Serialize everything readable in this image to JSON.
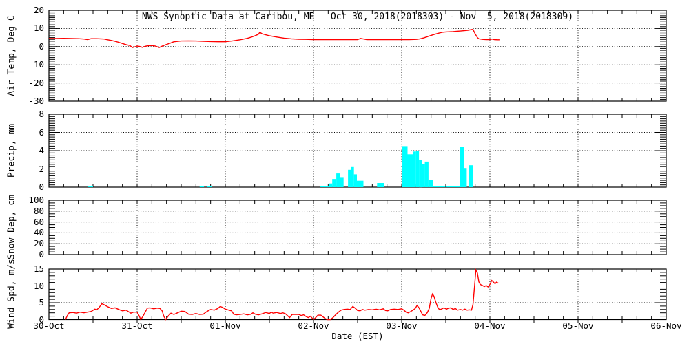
{
  "title": "NWS Synoptic Data at Caribou, ME   Oct 30, 2018(2018303) - Nov  5, 2018(2018309)",
  "xlabel": "Date (EST)",
  "colors": {
    "line": "#ff0000",
    "bar": "#00ffff",
    "axis": "#000000",
    "background": "#ffffff"
  },
  "x_axis": {
    "hours_total": 168,
    "day_labels": [
      "30-Oct",
      "31-Oct",
      "01-Nov",
      "02-Nov",
      "03-Nov",
      "04-Nov",
      "05-Nov",
      "06-Nov"
    ],
    "minor_tick_hours": 4,
    "grid_day_hours": [
      24,
      48,
      72,
      96,
      120,
      144
    ]
  },
  "chart_data": [
    {
      "type": "line",
      "name": "air-temperature",
      "ylabel": "Air Temp, Deg C",
      "ylim": [
        -30,
        20
      ],
      "yticks": [
        -30,
        -20,
        -10,
        0,
        10,
        20
      ],
      "ygrid": [
        -20,
        -10,
        0,
        10
      ],
      "y_minor_step": 1,
      "points": [
        [
          0,
          4.5
        ],
        [
          2,
          4.5
        ],
        [
          4,
          4.6
        ],
        [
          6,
          4.5
        ],
        [
          8,
          4.4
        ],
        [
          9.5,
          4.2
        ],
        [
          10.5,
          3.9
        ],
        [
          11.5,
          4.4
        ],
        [
          13,
          4.4
        ],
        [
          15,
          4.2
        ],
        [
          16,
          3.8
        ],
        [
          17,
          3.4
        ],
        [
          18,
          2.9
        ],
        [
          19,
          2.4
        ],
        [
          20,
          1.7
        ],
        [
          21,
          1.1
        ],
        [
          22,
          0.6
        ],
        [
          22.7,
          -0.5
        ],
        [
          23.4,
          -0.1
        ],
        [
          24,
          0.3
        ],
        [
          24.7,
          0.1
        ],
        [
          25.4,
          -0.4
        ],
        [
          26.2,
          0.2
        ],
        [
          27,
          0.5
        ],
        [
          28,
          0.6
        ],
        [
          29,
          0.3
        ],
        [
          30,
          -0.5
        ],
        [
          31,
          0.4
        ],
        [
          32,
          1.2
        ],
        [
          33,
          1.9
        ],
        [
          34,
          2.7
        ],
        [
          36,
          3.1
        ],
        [
          38,
          3.2
        ],
        [
          40,
          3.1
        ],
        [
          42,
          2.9
        ],
        [
          44,
          2.8
        ],
        [
          46,
          2.7
        ],
        [
          48,
          2.7
        ],
        [
          49,
          2.9
        ],
        [
          50,
          3.2
        ],
        [
          52,
          3.8
        ],
        [
          54,
          4.6
        ],
        [
          55,
          5.2
        ],
        [
          56,
          5.9
        ],
        [
          57,
          6.8
        ],
        [
          57.4,
          7.9
        ],
        [
          58,
          7.1
        ],
        [
          59,
          6.5
        ],
        [
          60,
          6.0
        ],
        [
          62,
          5.3
        ],
        [
          64,
          4.7
        ],
        [
          66,
          4.3
        ],
        [
          68,
          4.1
        ],
        [
          70,
          4.0
        ],
        [
          72,
          3.9
        ],
        [
          75,
          3.9
        ],
        [
          78,
          3.9
        ],
        [
          81,
          3.9
        ],
        [
          84,
          3.9
        ],
        [
          84.8,
          4.5
        ],
        [
          85.7,
          4.2
        ],
        [
          86.5,
          3.9
        ],
        [
          88,
          3.9
        ],
        [
          90,
          3.9
        ],
        [
          92,
          3.9
        ],
        [
          94,
          3.9
        ],
        [
          96,
          3.9
        ],
        [
          98,
          3.9
        ],
        [
          100,
          4.0
        ],
        [
          101,
          4.3
        ],
        [
          102,
          4.8
        ],
        [
          103,
          5.5
        ],
        [
          104,
          6.2
        ],
        [
          105,
          6.8
        ],
        [
          106,
          7.4
        ],
        [
          107,
          7.9
        ],
        [
          108,
          8.1
        ],
        [
          109,
          8.2
        ],
        [
          110,
          8.3
        ],
        [
          111,
          8.5
        ],
        [
          112,
          8.6
        ],
        [
          113,
          8.8
        ],
        [
          114,
          9.0
        ],
        [
          115,
          9.4
        ],
        [
          115.4,
          9.5
        ],
        [
          116,
          7.0
        ],
        [
          116.6,
          5.0
        ],
        [
          117,
          4.3
        ],
        [
          118,
          4.0
        ],
        [
          119,
          3.9
        ],
        [
          120,
          3.9
        ],
        [
          120.6,
          4.2
        ],
        [
          121.2,
          3.9
        ],
        [
          122,
          3.8
        ],
        [
          122.6,
          3.8
        ]
      ]
    },
    {
      "type": "bar",
      "name": "precipitation",
      "ylabel": "Precip, mm",
      "ylim": [
        0,
        8
      ],
      "yticks": [
        0,
        2,
        4,
        6,
        8
      ],
      "ygrid": [
        2,
        4,
        6
      ],
      "y_minor_step": 0.25,
      "bars": [
        {
          "t": 10.7,
          "w": 1.3,
          "v": 0.15
        },
        {
          "t": 41.0,
          "w": 1.2,
          "v": 0.15
        },
        {
          "t": 43.1,
          "w": 1.3,
          "v": 0.15
        },
        {
          "t": 73.9,
          "w": 1.1,
          "v": 0.1
        },
        {
          "t": 75.0,
          "w": 1.1,
          "v": 0.12
        },
        {
          "t": 76.1,
          "w": 1.0,
          "v": 0.4
        },
        {
          "t": 77.1,
          "w": 1.1,
          "v": 0.9
        },
        {
          "t": 78.2,
          "w": 1.1,
          "v": 1.5
        },
        {
          "t": 79.3,
          "w": 0.9,
          "v": 1.1
        },
        {
          "t": 81.4,
          "w": 0.8,
          "v": 1.9
        },
        {
          "t": 82.2,
          "w": 0.8,
          "v": 2.2
        },
        {
          "t": 83.0,
          "w": 0.8,
          "v": 1.4
        },
        {
          "t": 83.8,
          "w": 1.8,
          "v": 0.7
        },
        {
          "t": 89.3,
          "w": 2.0,
          "v": 0.45
        },
        {
          "t": 96.0,
          "w": 1.6,
          "v": 4.5
        },
        {
          "t": 97.6,
          "w": 1.5,
          "v": 3.6
        },
        {
          "t": 99.1,
          "w": 0.8,
          "v": 3.9
        },
        {
          "t": 99.9,
          "w": 0.8,
          "v": 4.0
        },
        {
          "t": 100.7,
          "w": 0.8,
          "v": 3.0
        },
        {
          "t": 101.5,
          "w": 0.8,
          "v": 2.5
        },
        {
          "t": 102.3,
          "w": 1.0,
          "v": 2.8
        },
        {
          "t": 103.3,
          "w": 1.3,
          "v": 0.8
        },
        {
          "t": 104.6,
          "w": 3.3,
          "v": 0.15
        },
        {
          "t": 108.2,
          "w": 3.6,
          "v": 0.15
        },
        {
          "t": 111.8,
          "w": 1.1,
          "v": 4.4
        },
        {
          "t": 112.9,
          "w": 0.8,
          "v": 2.1
        },
        {
          "t": 114.2,
          "w": 1.3,
          "v": 2.4
        }
      ]
    },
    {
      "type": "line",
      "name": "snow-depth",
      "ylabel": "Snow Dep, cm",
      "ylim": [
        0,
        100
      ],
      "yticks": [
        0,
        20,
        40,
        60,
        80,
        100
      ],
      "ygrid": [
        20,
        40,
        60,
        80
      ],
      "y_minor_step": 5,
      "points": []
    },
    {
      "type": "line",
      "name": "wind-speed",
      "ylabel": "Wind Spd, m/s",
      "ylim": [
        0,
        15
      ],
      "yticks": [
        0,
        5,
        10,
        15
      ],
      "ygrid": [
        5,
        10
      ],
      "y_minor_step": 1,
      "points": [
        [
          4.5,
          0
        ],
        [
          5,
          1.2
        ],
        [
          5.5,
          2.0
        ],
        [
          6.5,
          2.1
        ],
        [
          7.5,
          1.9
        ],
        [
          8.5,
          2.2
        ],
        [
          9.5,
          2.0
        ],
        [
          10.5,
          2.2
        ],
        [
          11.5,
          2.4
        ],
        [
          12.5,
          3.1
        ],
        [
          13,
          2.9
        ],
        [
          13.6,
          3.5
        ],
        [
          14.4,
          4.7
        ],
        [
          15,
          4.4
        ],
        [
          16,
          3.8
        ],
        [
          17,
          3.3
        ],
        [
          18,
          3.5
        ],
        [
          19,
          3.0
        ],
        [
          20,
          2.6
        ],
        [
          21,
          2.8
        ],
        [
          21.7,
          2.3
        ],
        [
          22.3,
          1.9
        ],
        [
          23,
          2.2
        ],
        [
          24,
          2.2
        ],
        [
          24.6,
          1.0
        ],
        [
          25,
          0.0
        ],
        [
          25.6,
          1.0
        ],
        [
          26.2,
          2.2
        ],
        [
          26.8,
          3.4
        ],
        [
          27.5,
          3.5
        ],
        [
          28.5,
          3.2
        ],
        [
          29.5,
          3.4
        ],
        [
          30.2,
          3.3
        ],
        [
          30.8,
          2.6
        ],
        [
          31.3,
          0.9
        ],
        [
          31.8,
          0.0
        ],
        [
          32.5,
          1.1
        ],
        [
          33.2,
          1.9
        ],
        [
          34,
          1.5
        ],
        [
          35,
          2.0
        ],
        [
          36,
          2.5
        ],
        [
          37,
          2.4
        ],
        [
          38,
          1.6
        ],
        [
          39,
          1.5
        ],
        [
          40,
          1.8
        ],
        [
          41,
          1.5
        ],
        [
          42,
          1.6
        ],
        [
          43,
          2.4
        ],
        [
          44,
          3.0
        ],
        [
          45,
          2.8
        ],
        [
          46,
          3.3
        ],
        [
          46.6,
          3.9
        ],
        [
          47.3,
          3.6
        ],
        [
          48,
          3.1
        ],
        [
          49,
          2.8
        ],
        [
          49.7,
          2.6
        ],
        [
          50.3,
          1.6
        ],
        [
          51,
          1.4
        ],
        [
          52,
          1.5
        ],
        [
          53,
          1.7
        ],
        [
          54,
          1.4
        ],
        [
          55,
          1.6
        ],
        [
          55.5,
          2.0
        ],
        [
          56.2,
          1.6
        ],
        [
          57,
          1.4
        ],
        [
          58,
          1.7
        ],
        [
          59,
          2.1
        ],
        [
          60,
          1.8
        ],
        [
          60.5,
          2.2
        ],
        [
          61,
          1.9
        ],
        [
          62,
          2.1
        ],
        [
          63,
          1.8
        ],
        [
          63.7,
          2.0
        ],
        [
          64.4,
          1.7
        ],
        [
          65,
          1.1
        ],
        [
          65.5,
          0.6
        ],
        [
          66.2,
          1.5
        ],
        [
          67,
          1.5
        ],
        [
          68,
          1.5
        ],
        [
          68.7,
          1.2
        ],
        [
          69.3,
          1.4
        ],
        [
          70,
          0.9
        ],
        [
          70.6,
          0.6
        ],
        [
          71.2,
          1.0
        ],
        [
          72,
          0.0
        ],
        [
          72.6,
          0.6
        ],
        [
          73.2,
          1.3
        ],
        [
          74,
          1.3
        ],
        [
          74.6,
          0.8
        ],
        [
          75.2,
          0.3
        ],
        [
          75.8,
          0.0
        ],
        [
          76.6,
          0.0
        ],
        [
          77.3,
          0.6
        ],
        [
          78,
          1.4
        ],
        [
          78.7,
          2.1
        ],
        [
          79.5,
          2.8
        ],
        [
          80.3,
          3.0
        ],
        [
          81.2,
          3.1
        ],
        [
          82,
          3.0
        ],
        [
          82.7,
          3.9
        ],
        [
          83.3,
          3.4
        ],
        [
          84,
          2.7
        ],
        [
          84.7,
          2.6
        ],
        [
          85.3,
          3.0
        ],
        [
          86,
          2.8
        ],
        [
          87,
          3.0
        ],
        [
          88,
          2.9
        ],
        [
          89,
          3.1
        ],
        [
          90,
          2.9
        ],
        [
          91,
          3.2
        ],
        [
          91.6,
          2.7
        ],
        [
          92.2,
          2.6
        ],
        [
          93,
          3.0
        ],
        [
          94,
          3.1
        ],
        [
          95,
          3.0
        ],
        [
          96,
          3.2
        ],
        [
          96.6,
          2.8
        ],
        [
          97.2,
          2.2
        ],
        [
          97.8,
          2.0
        ],
        [
          98.5,
          2.4
        ],
        [
          99.2,
          2.9
        ],
        [
          99.7,
          3.3
        ],
        [
          100.2,
          4.2
        ],
        [
          100.7,
          3.5
        ],
        [
          101.2,
          2.5
        ],
        [
          101.7,
          1.4
        ],
        [
          102.3,
          1.2
        ],
        [
          103,
          2.1
        ],
        [
          103.5,
          3.3
        ],
        [
          104,
          6.3
        ],
        [
          104.4,
          7.6
        ],
        [
          104.8,
          6.9
        ],
        [
          105.3,
          5.1
        ],
        [
          105.8,
          3.7
        ],
        [
          106.3,
          2.9
        ],
        [
          107,
          3.2
        ],
        [
          107.5,
          3.5
        ],
        [
          108.2,
          3.1
        ],
        [
          108.8,
          3.4
        ],
        [
          109.4,
          3.5
        ],
        [
          110,
          3.0
        ],
        [
          110.6,
          3.3
        ],
        [
          111.2,
          2.8
        ],
        [
          112,
          3.0
        ],
        [
          112.6,
          2.8
        ],
        [
          113.2,
          3.1
        ],
        [
          113.8,
          2.8
        ],
        [
          114.4,
          2.9
        ],
        [
          115,
          2.8
        ],
        [
          115.4,
          4.5
        ],
        [
          115.8,
          9.5
        ],
        [
          116.2,
          14.7
        ],
        [
          116.6,
          13.8
        ],
        [
          117,
          11.2
        ],
        [
          117.4,
          10.4
        ],
        [
          118,
          10.1
        ],
        [
          118.5,
          9.8
        ],
        [
          119,
          10.1
        ],
        [
          119.5,
          9.7
        ],
        [
          120,
          10.4
        ],
        [
          120.5,
          11.6
        ],
        [
          121,
          11.1
        ],
        [
          121.4,
          10.6
        ],
        [
          121.8,
          11.1
        ],
        [
          122.3,
          10.8
        ]
      ]
    }
  ]
}
